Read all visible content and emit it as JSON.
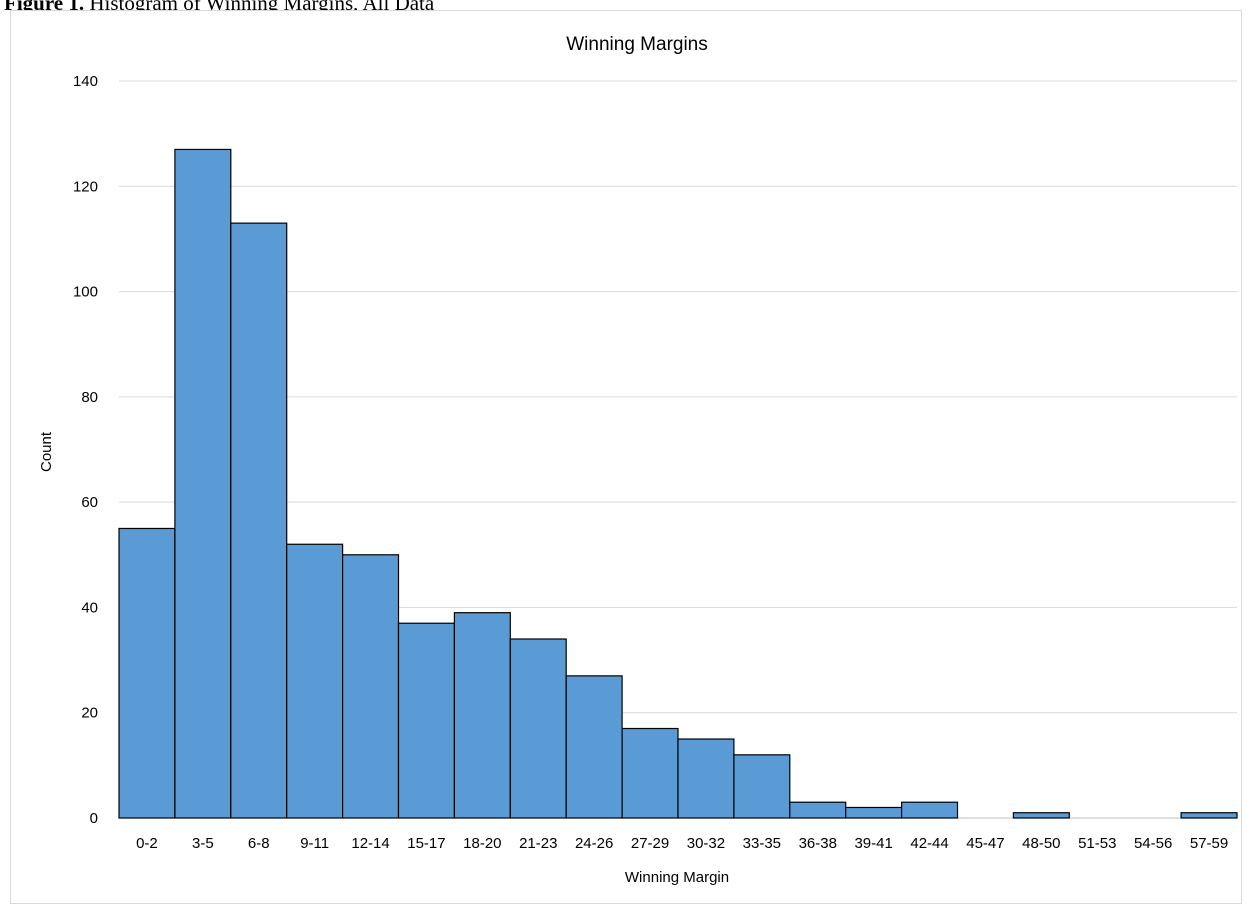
{
  "caption": {
    "label": "Figure 1.",
    "text": "Histogram of Winning Margins, All Data"
  },
  "chart_data": {
    "type": "bar",
    "title": "Winning Margins",
    "xlabel": "Winning Margin",
    "ylabel": "Count",
    "ylim": [
      0,
      140
    ],
    "yticks": [
      0,
      20,
      40,
      60,
      80,
      100,
      120,
      140
    ],
    "grid": true,
    "legend": "none",
    "categories": [
      "0-2",
      "3-5",
      "6-8",
      "9-11",
      "12-14",
      "15-17",
      "18-20",
      "21-23",
      "24-26",
      "27-29",
      "30-32",
      "33-35",
      "36-38",
      "39-41",
      "42-44",
      "45-47",
      "48-50",
      "51-53",
      "54-56",
      "57-59"
    ],
    "values": [
      55,
      127,
      113,
      52,
      50,
      37,
      39,
      34,
      27,
      17,
      15,
      12,
      3,
      2,
      3,
      0,
      1,
      0,
      0,
      1
    ],
    "bar_color": "#5b9bd5",
    "edge_color": "#000000"
  }
}
